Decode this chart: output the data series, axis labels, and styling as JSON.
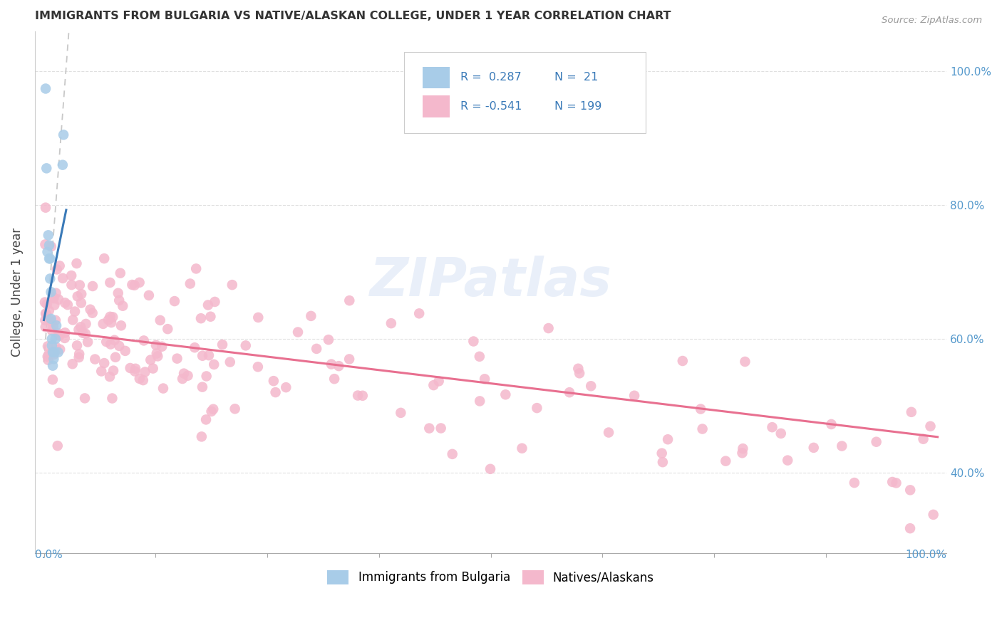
{
  "title": "IMMIGRANTS FROM BULGARIA VS NATIVE/ALASKAN COLLEGE, UNDER 1 YEAR CORRELATION CHART",
  "source": "Source: ZipAtlas.com",
  "ylabel": "College, Under 1 year",
  "watermark": "ZIPatlas",
  "blue_color": "#a8cce8",
  "pink_color": "#f4b8cc",
  "blue_line_color": "#3a7ab8",
  "pink_line_color": "#e87090",
  "dashed_line_color": "#c8c8c8",
  "bg_color": "#ffffff",
  "grid_color": "#e0e0e0",
  "right_axis_color": "#5599cc",
  "title_color": "#333333",
  "source_color": "#999999"
}
